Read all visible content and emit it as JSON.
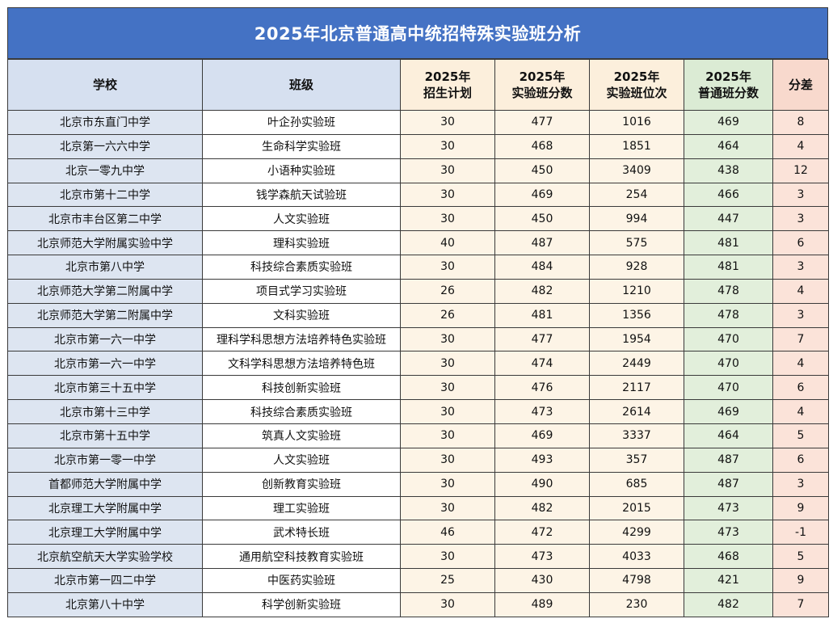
{
  "title": "2025年北京普通高中统招特殊实验班分析",
  "headers": {
    "school": "学校",
    "class": "班级",
    "plan": [
      "2025年",
      "招生计划"
    ],
    "score": [
      "2025年",
      "实验班分数"
    ],
    "rank": [
      "2025年",
      "实验班位次"
    ],
    "normal": [
      "2025年",
      "普通班分数"
    ],
    "diff": "分差"
  },
  "colors": {
    "title_bg": "#4472c4",
    "blue_col": "#dde5f1",
    "orange_col": "#fdf4e6",
    "green_col": "#e2efdb",
    "red_col": "#fbe3d9"
  },
  "rows": [
    {
      "school": "北京市东直门中学",
      "class": "叶企孙实验班",
      "plan": "30",
      "score": "477",
      "rank": "1016",
      "normal": "469",
      "diff": "8"
    },
    {
      "school": "北京第一六六中学",
      "class": "生命科学实验班",
      "plan": "30",
      "score": "468",
      "rank": "1851",
      "normal": "464",
      "diff": "4"
    },
    {
      "school": "北京一零九中学",
      "class": "小语种实验班",
      "plan": "30",
      "score": "450",
      "rank": "3409",
      "normal": "438",
      "diff": "12"
    },
    {
      "school": "北京市第十二中学",
      "class": "钱学森航天试验班",
      "plan": "30",
      "score": "469",
      "rank": "254",
      "normal": "466",
      "diff": "3"
    },
    {
      "school": "北京市丰台区第二中学",
      "class": "人文实验班",
      "plan": "30",
      "score": "450",
      "rank": "994",
      "normal": "447",
      "diff": "3"
    },
    {
      "school": "北京师范大学附属实验中学",
      "class": "理科实验班",
      "plan": "40",
      "score": "487",
      "rank": "575",
      "normal": "481",
      "diff": "6"
    },
    {
      "school": "北京市第八中学",
      "class": "科技综合素质实验班",
      "plan": "30",
      "score": "484",
      "rank": "928",
      "normal": "481",
      "diff": "3"
    },
    {
      "school": "北京师范大学第二附属中学",
      "class": "项目式学习实验班",
      "plan": "26",
      "score": "482",
      "rank": "1210",
      "normal": "478",
      "diff": "4"
    },
    {
      "school": "北京师范大学第二附属中学",
      "class": "文科实验班",
      "plan": "26",
      "score": "481",
      "rank": "1356",
      "normal": "478",
      "diff": "3"
    },
    {
      "school": "北京市第一六一中学",
      "class": "理科学科思想方法培养特色实验班",
      "plan": "30",
      "score": "477",
      "rank": "1954",
      "normal": "470",
      "diff": "7"
    },
    {
      "school": "北京市第一六一中学",
      "class": "文科学科思想方法培养特色班",
      "plan": "30",
      "score": "474",
      "rank": "2449",
      "normal": "470",
      "diff": "4"
    },
    {
      "school": "北京市第三十五中学",
      "class": "科技创新实验班",
      "plan": "30",
      "score": "476",
      "rank": "2117",
      "normal": "470",
      "diff": "6"
    },
    {
      "school": "北京市第十三中学",
      "class": "科技综合素质实验班",
      "plan": "30",
      "score": "473",
      "rank": "2614",
      "normal": "469",
      "diff": "4"
    },
    {
      "school": "北京市第十五中学",
      "class": "筑真人文实验班",
      "plan": "30",
      "score": "469",
      "rank": "3337",
      "normal": "464",
      "diff": "5"
    },
    {
      "school": "北京市第一零一中学",
      "class": "人文实验班",
      "plan": "30",
      "score": "493",
      "rank": "357",
      "normal": "487",
      "diff": "6"
    },
    {
      "school": "首都师范大学附属中学",
      "class": "创新教育实验班",
      "plan": "30",
      "score": "490",
      "rank": "685",
      "normal": "487",
      "diff": "3"
    },
    {
      "school": "北京理工大学附属中学",
      "class": "理工实验班",
      "plan": "30",
      "score": "482",
      "rank": "2015",
      "normal": "473",
      "diff": "9"
    },
    {
      "school": "北京理工大学附属中学",
      "class": "武术特长班",
      "plan": "46",
      "score": "472",
      "rank": "4299",
      "normal": "473",
      "diff": "-1"
    },
    {
      "school": "北京航空航天大学实验学校",
      "class": "通用航空科技教育实验班",
      "plan": "30",
      "score": "473",
      "rank": "4033",
      "normal": "468",
      "diff": "5"
    },
    {
      "school": "北京市第一四二中学",
      "class": "中医药实验班",
      "plan": "25",
      "score": "430",
      "rank": "4798",
      "normal": "421",
      "diff": "9"
    },
    {
      "school": "北京第八十中学",
      "class": "科学创新实验班",
      "plan": "30",
      "score": "489",
      "rank": "230",
      "normal": "482",
      "diff": "7"
    }
  ]
}
